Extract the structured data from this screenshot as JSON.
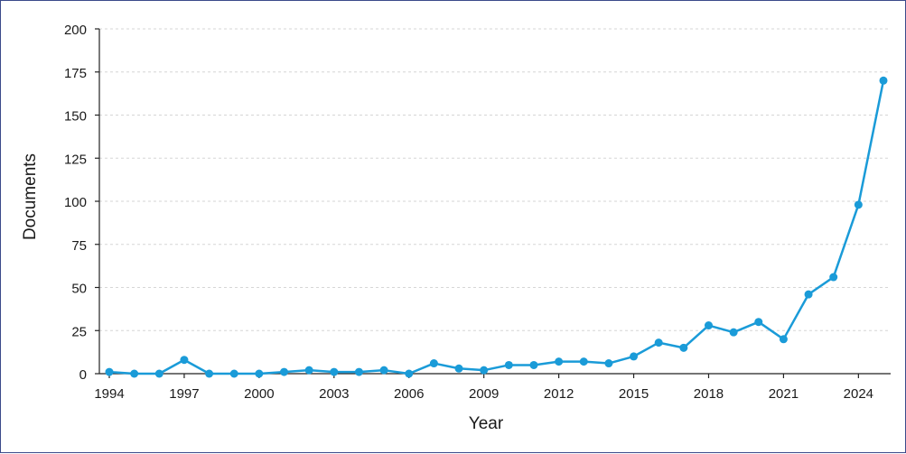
{
  "chart_data": {
    "type": "line",
    "x": [
      1994,
      1995,
      1996,
      1997,
      1998,
      1999,
      2000,
      2001,
      2002,
      2003,
      2004,
      2005,
      2006,
      2007,
      2008,
      2009,
      2010,
      2011,
      2012,
      2013,
      2014,
      2015,
      2016,
      2017,
      2018,
      2019,
      2020,
      2021,
      2022,
      2023,
      2024,
      2025
    ],
    "series": [
      {
        "values": [
          1,
          0,
          0,
          8,
          0,
          0,
          0,
          1,
          2,
          1,
          1,
          2,
          0,
          6,
          3,
          2,
          5,
          5,
          7,
          7,
          6,
          10,
          18,
          15,
          28,
          24,
          30,
          20,
          46,
          56,
          98,
          170
        ],
        "color": "#1a9bd8"
      }
    ],
    "xticks": [
      1994,
      1997,
      2000,
      2003,
      2006,
      2009,
      2012,
      2015,
      2018,
      2021,
      2024
    ],
    "yticks": [
      0,
      25,
      50,
      75,
      100,
      125,
      150,
      175,
      200
    ],
    "xlabel": "Year",
    "ylabel": "Documents",
    "xlim": [
      1994,
      2025
    ],
    "ylim": [
      0,
      200
    ],
    "grid": true
  }
}
